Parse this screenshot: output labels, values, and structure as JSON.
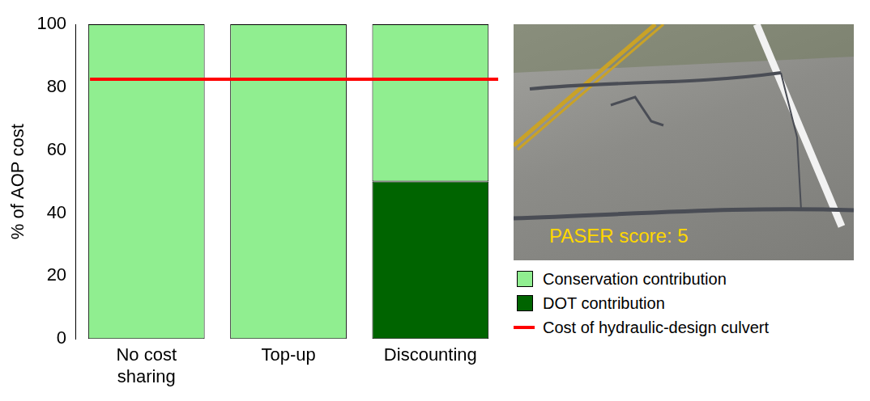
{
  "chart_data": {
    "type": "bar",
    "stacked": true,
    "categories": [
      "No cost sharing",
      "Top-up",
      "Discounting"
    ],
    "series": [
      {
        "name": "Conservation contribution",
        "color": "#90ee90",
        "values": [
          100,
          100,
          50
        ]
      },
      {
        "name": "DOT contribution",
        "color": "#006400",
        "values": [
          0,
          0,
          50
        ]
      }
    ],
    "y_label": "% of AOP cost",
    "ylim": [
      0,
      100
    ],
    "yticks": [
      0,
      20,
      40,
      60,
      80,
      100
    ],
    "grid": false,
    "legend": "right",
    "reference_line": {
      "name": "Cost of hydraulic-design culvert",
      "value": 82.5,
      "color": "#ff0000"
    },
    "inset": {
      "text": "PASER score: 5"
    }
  }
}
